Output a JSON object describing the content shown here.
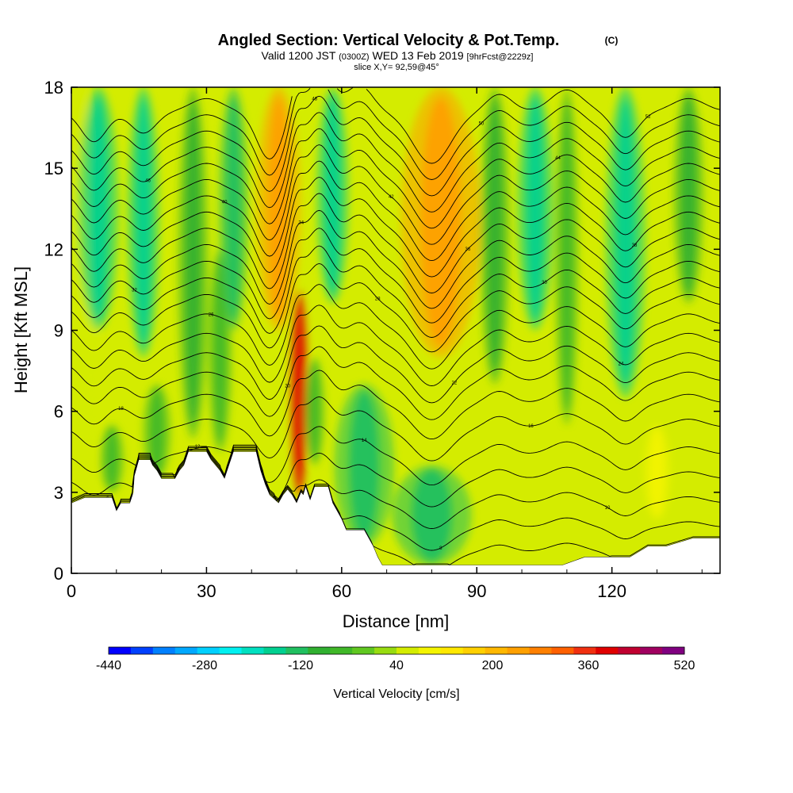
{
  "header": {
    "title_main": "Angled Section: Vertical Velocity & Pot.Temp.",
    "title_unit": "(C)",
    "subtitle_valid": "Valid 1200 JST",
    "subtitle_utc": "(0300Z)",
    "subtitle_date": "WED 13 Feb 2019",
    "subtitle_fcst": "[9hrFcst@2229z]",
    "slice_label": "slice X,Y= 92,59@45°"
  },
  "chart_data": {
    "type": "heatmap",
    "title": "Angled Section: Vertical Velocity & Pot.Temp.",
    "xlabel": "Distance [nm]",
    "ylabel": "Height [Kft MSL]",
    "xlim": [
      0,
      144
    ],
    "ylim": [
      0,
      18
    ],
    "x_ticks": [
      0,
      30,
      60,
      90,
      120
    ],
    "x_tick_labels": [
      "0",
      "30",
      "60",
      "90",
      "120"
    ],
    "y_ticks": [
      0,
      3,
      6,
      9,
      12,
      15,
      18
    ],
    "y_tick_labels": [
      "0",
      "3",
      "6",
      "9",
      "12",
      "15",
      "18"
    ],
    "colorbar": {
      "label": "Vertical Velocity [cm/s]",
      "min": -440,
      "max": 520,
      "tick_values": [
        -440,
        -280,
        -120,
        40,
        200,
        360,
        520
      ],
      "tick_labels": [
        "-440",
        "-280",
        "-120",
        "40",
        "200",
        "360",
        "520"
      ],
      "colors": [
        "#0000ff",
        "#0040ff",
        "#0080ff",
        "#00a8ff",
        "#00d0ff",
        "#00f0f0",
        "#00e0c0",
        "#00d090",
        "#20c060",
        "#30b030",
        "#40b828",
        "#60c820",
        "#98dc10",
        "#d4ec00",
        "#f4f400",
        "#ffe800",
        "#ffd000",
        "#ffb800",
        "#ffa000",
        "#ff8000",
        "#ff6000",
        "#f03010",
        "#e00000",
        "#c00030",
        "#a00060",
        "#800080"
      ]
    },
    "terrain_profile": [
      [
        0,
        2.6
      ],
      [
        3,
        2.8
      ],
      [
        9,
        2.8
      ],
      [
        10,
        2.3
      ],
      [
        11,
        2.6
      ],
      [
        13,
        2.6
      ],
      [
        13.8,
        3.0
      ],
      [
        14,
        3.6
      ],
      [
        15,
        4.2
      ],
      [
        17.5,
        4.2
      ],
      [
        18,
        4.0
      ],
      [
        19,
        3.8
      ],
      [
        20,
        3.5
      ],
      [
        23,
        3.5
      ],
      [
        24,
        3.8
      ],
      [
        25,
        4.0
      ],
      [
        26,
        4.5
      ],
      [
        30,
        4.5
      ],
      [
        31,
        4.2
      ],
      [
        33,
        3.8
      ],
      [
        34,
        3.5
      ],
      [
        35,
        4.0
      ],
      [
        36,
        4.5
      ],
      [
        41,
        4.5
      ],
      [
        42,
        3.8
      ],
      [
        43,
        3.3
      ],
      [
        44,
        2.9
      ],
      [
        46,
        2.6
      ],
      [
        47,
        2.9
      ],
      [
        48,
        3.1
      ],
      [
        49,
        2.9
      ],
      [
        50,
        2.6
      ],
      [
        51,
        3.0
      ],
      [
        51.5,
        2.9
      ],
      [
        52,
        3.2
      ],
      [
        53,
        2.7
      ],
      [
        54,
        3.2
      ],
      [
        57,
        3.2
      ],
      [
        58,
        2.6
      ],
      [
        60,
        2.0
      ],
      [
        61,
        1.6
      ],
      [
        65,
        1.6
      ],
      [
        66,
        1.3
      ],
      [
        67,
        1.0
      ],
      [
        68,
        0.6
      ],
      [
        69,
        0.3
      ],
      [
        76,
        0.3
      ],
      [
        96,
        0.3
      ],
      [
        102,
        0.3
      ],
      [
        109,
        0.3
      ],
      [
        114,
        0.6
      ],
      [
        124,
        0.6
      ],
      [
        128,
        1.0
      ],
      [
        132,
        1.0
      ],
      [
        138,
        1.3
      ],
      [
        144,
        1.3
      ]
    ],
    "velocity_features": [
      {
        "x": 2,
        "y0": 0,
        "y1": 18,
        "w": 1.6,
        "v": 60
      },
      {
        "x": 6,
        "y0": 9,
        "y1": 18,
        "w": 2.0,
        "v": -150
      },
      {
        "x": 9,
        "y0": 3,
        "y1": 5.5,
        "w": 1.2,
        "v": -70
      },
      {
        "x": 16,
        "y0": 8,
        "y1": 18,
        "w": 1.6,
        "v": -150
      },
      {
        "x": 19,
        "y0": 3.5,
        "y1": 7,
        "w": 1.4,
        "v": -70
      },
      {
        "x": 27,
        "y0": 5,
        "y1": 18,
        "w": 1.5,
        "v": -90
      },
      {
        "x": 33,
        "y0": 4.5,
        "y1": 12,
        "w": 1.2,
        "v": -70
      },
      {
        "x": 36,
        "y0": 9,
        "y1": 18,
        "w": 1.5,
        "v": -120
      },
      {
        "x": 46,
        "y0": 9,
        "y1": 18,
        "w": 2.2,
        "v": 230
      },
      {
        "x": 50.6,
        "y0": 2.8,
        "y1": 10.5,
        "w": 0.9,
        "v": 380
      },
      {
        "x": 54,
        "y0": 4,
        "y1": 8,
        "w": 1.0,
        "v": -70
      },
      {
        "x": 58,
        "y0": 10,
        "y1": 18,
        "w": 1.6,
        "v": -150
      },
      {
        "x": 65,
        "y0": 1,
        "y1": 7,
        "w": 3.0,
        "v": -130
      },
      {
        "x": 82,
        "y0": 8,
        "y1": 18,
        "w": 4.0,
        "v": 240
      },
      {
        "x": 80,
        "y0": 0.3,
        "y1": 4,
        "w": 4.0,
        "v": -130
      },
      {
        "x": 94,
        "y0": 7,
        "y1": 18,
        "w": 1.5,
        "v": -90
      },
      {
        "x": 103,
        "y0": 9,
        "y1": 18,
        "w": 1.8,
        "v": -150
      },
      {
        "x": 110,
        "y0": 5.5,
        "y1": 18,
        "w": 1.2,
        "v": -70
      },
      {
        "x": 123,
        "y0": 6.5,
        "y1": 18,
        "w": 2.0,
        "v": -170
      },
      {
        "x": 130,
        "y0": 2,
        "y1": 5.5,
        "w": 1.3,
        "v": 80
      },
      {
        "x": 137,
        "y0": 10,
        "y1": 18,
        "w": 1.5,
        "v": -80
      }
    ],
    "theta_levels": [
      4,
      6,
      8,
      10,
      12,
      14,
      16,
      18,
      20,
      22,
      24,
      26,
      28,
      30,
      32,
      34,
      36,
      38,
      40,
      42,
      44,
      46,
      48,
      50,
      52
    ],
    "theta_base_height": [
      0,
      0.8,
      1.7,
      2.6,
      3.5,
      4.4,
      5.4,
      6.3,
      7.1,
      7.8,
      8.5,
      9.2,
      9.9,
      10.5,
      11.1,
      11.7,
      12.3,
      12.9,
      13.5,
      14.1,
      14.7,
      15.3,
      15.9,
      16.5,
      17.1
    ],
    "theta_waves": [
      {
        "x": 5,
        "amp": -0.7,
        "w": 4
      },
      {
        "x": 16,
        "amp": -0.5,
        "w": 4
      },
      {
        "x": 30,
        "amp": 0.3,
        "w": 5
      },
      {
        "x": 44,
        "amp": -1.1,
        "w": 4
      },
      {
        "x": 50,
        "amp": 0.6,
        "w": 2
      },
      {
        "x": 55,
        "amp": 1.1,
        "w": 4
      },
      {
        "x": 64,
        "amp": 0.6,
        "w": 4
      },
      {
        "x": 80,
        "amp": -1.2,
        "w": 6
      },
      {
        "x": 95,
        "amp": 0.4,
        "w": 4
      },
      {
        "x": 110,
        "amp": 0.5,
        "w": 5
      },
      {
        "x": 123,
        "amp": -0.6,
        "w": 4
      },
      {
        "x": 137,
        "amp": 0.3,
        "w": 5
      }
    ]
  }
}
